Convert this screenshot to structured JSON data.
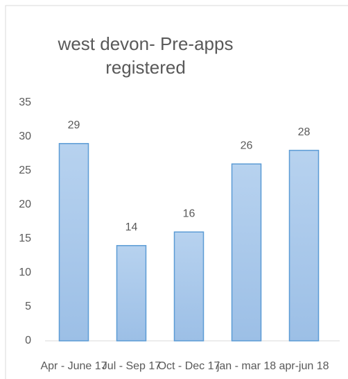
{
  "chart_data": {
    "type": "bar",
    "title": "west devon- Pre-apps registered",
    "categories": [
      "Apr - June 17",
      "Jul - Sep 17",
      "Oct - Dec 17",
      "jan - mar 18",
      "apr-jun 18"
    ],
    "values": [
      29,
      14,
      16,
      26,
      28
    ],
    "color": "#a9c8ea",
    "ylim": [
      0,
      35
    ],
    "yticks": [
      0,
      5,
      10,
      15,
      20,
      25,
      30,
      35
    ],
    "grid": false
  }
}
